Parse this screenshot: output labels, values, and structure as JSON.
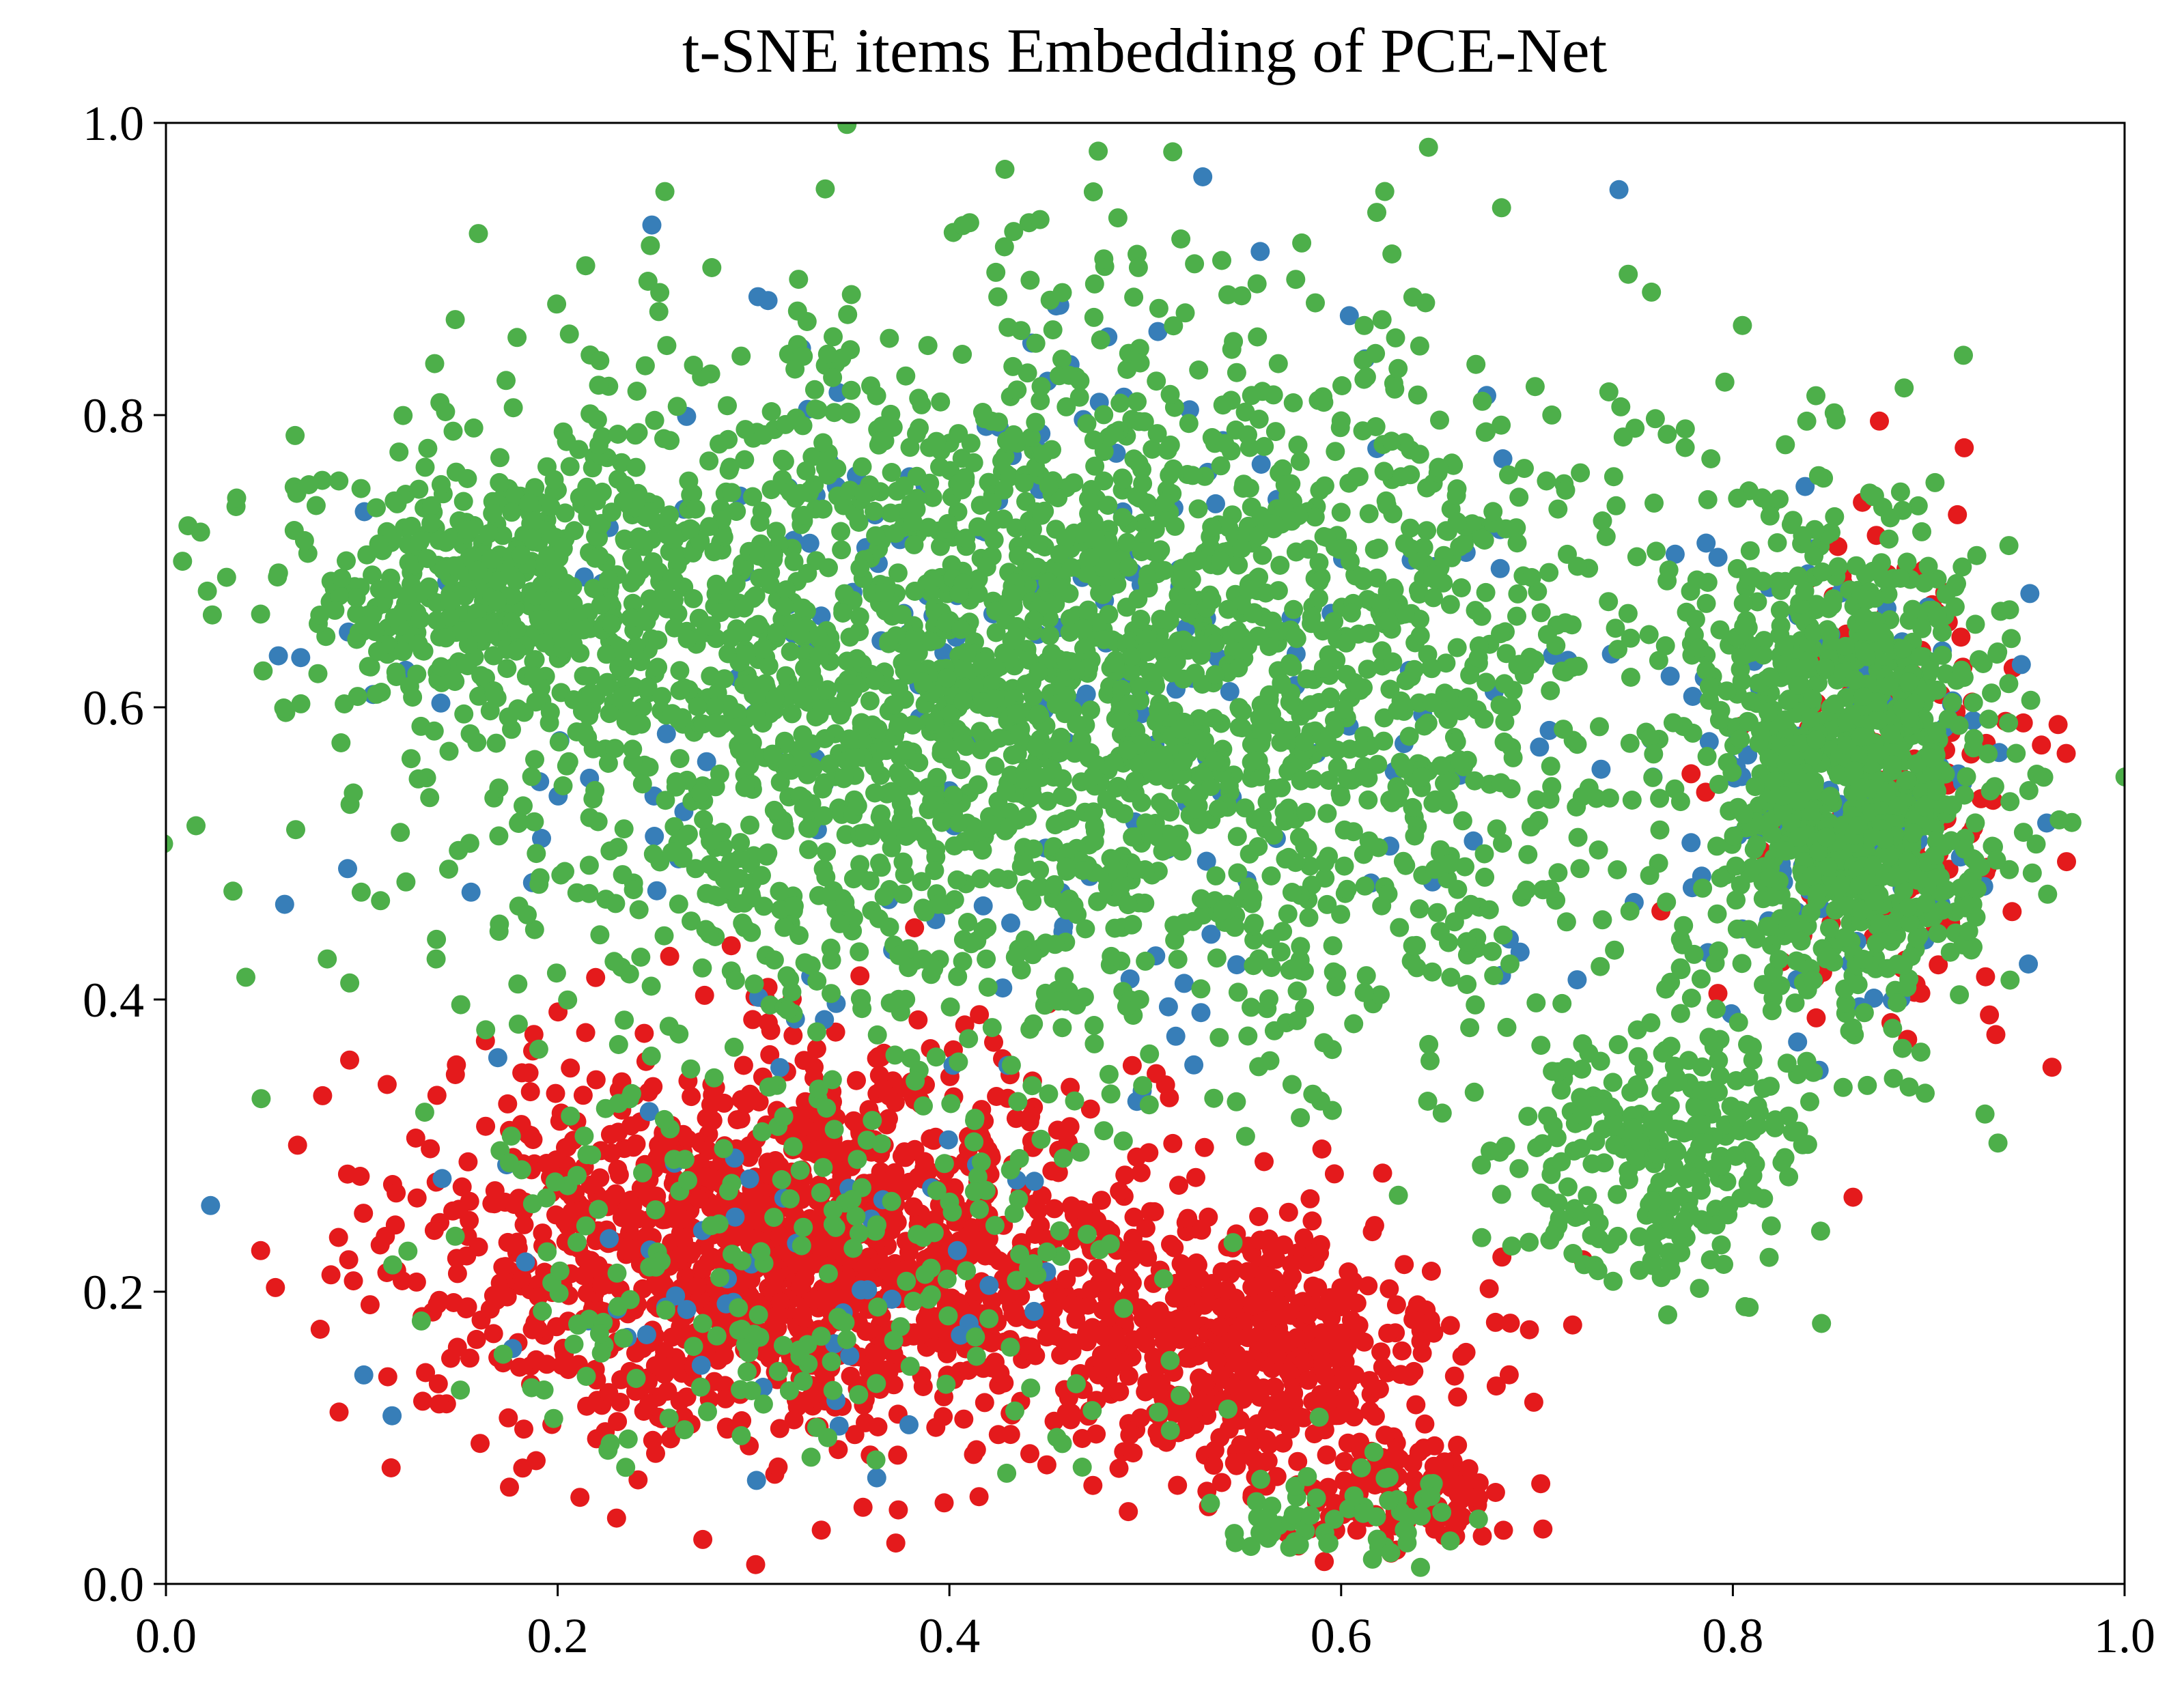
{
  "chart_data": {
    "type": "scatter",
    "title": "t-SNE items Embedding of PCE-Net",
    "xlabel": "",
    "ylabel": "",
    "xlim": [
      0.0,
      1.0
    ],
    "ylim": [
      0.0,
      1.0
    ],
    "xticks": [
      "0.0",
      "0.2",
      "0.4",
      "0.6",
      "0.8",
      "1.0"
    ],
    "yticks": [
      "0.0",
      "0.2",
      "0.4",
      "0.6",
      "0.8",
      "1.0"
    ],
    "grid": false,
    "legend": "none",
    "colors": {
      "red": "#e41a1c",
      "blue": "#377eb8",
      "green": "#4daf4a"
    },
    "series": [
      {
        "color": "#e41a1c",
        "clusters": [
          {
            "center": [
              0.32,
              0.23
            ],
            "spread": [
              0.17,
              0.12
            ],
            "count": 1400
          },
          {
            "center": [
              0.55,
              0.16
            ],
            "spread": [
              0.1,
              0.08
            ],
            "count": 500
          },
          {
            "center": [
              0.63,
              0.06
            ],
            "spread": [
              0.05,
              0.035
            ],
            "count": 120
          },
          {
            "center": [
              0.88,
              0.55
            ],
            "spread": [
              0.07,
              0.16
            ],
            "count": 160
          }
        ]
      },
      {
        "color": "#377eb8",
        "clusters": [
          {
            "center": [
              0.45,
              0.62
            ],
            "spread": [
              0.28,
              0.22
            ],
            "count": 250
          },
          {
            "center": [
              0.86,
              0.55
            ],
            "spread": [
              0.07,
              0.15
            ],
            "count": 140
          },
          {
            "center": [
              0.32,
              0.22
            ],
            "spread": [
              0.17,
              0.12
            ],
            "count": 60
          }
        ]
      },
      {
        "color": "#4daf4a",
        "clusters": [
          {
            "center": [
              0.45,
              0.62
            ],
            "spread": [
              0.28,
              0.22
            ],
            "count": 2600
          },
          {
            "center": [
              0.17,
              0.68
            ],
            "spread": [
              0.1,
              0.08
            ],
            "count": 420
          },
          {
            "center": [
              0.86,
              0.55
            ],
            "spread": [
              0.07,
              0.15
            ],
            "count": 900
          },
          {
            "center": [
              0.76,
              0.3
            ],
            "spread": [
              0.07,
              0.08
            ],
            "count": 260
          },
          {
            "center": [
              0.32,
              0.22
            ],
            "spread": [
              0.18,
              0.12
            ],
            "count": 220
          },
          {
            "center": [
              0.6,
              0.05
            ],
            "spread": [
              0.06,
              0.03
            ],
            "count": 60
          }
        ]
      }
    ]
  }
}
